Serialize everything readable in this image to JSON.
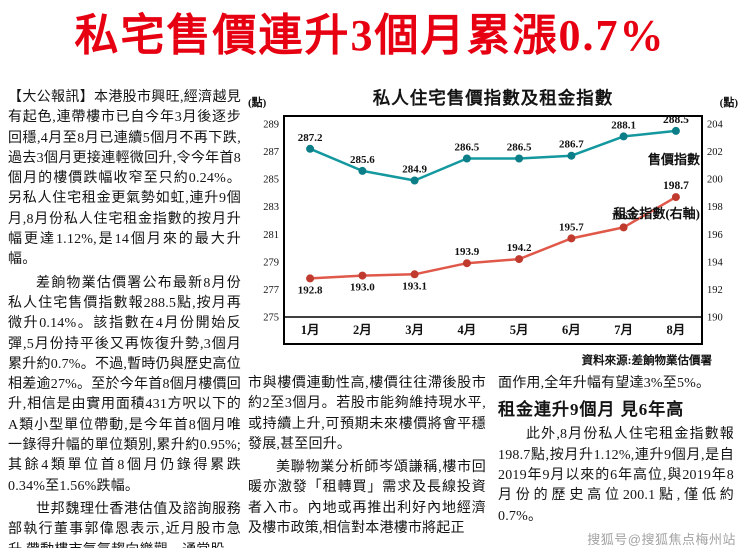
{
  "headline": "私宅售價連升3個月累漲0.7%",
  "colors": {
    "headline": "#e60012",
    "price_line": "#14989f",
    "price_marker": "#0c7e88",
    "rent_line": "#e0584a",
    "rent_marker": "#c03a2e"
  },
  "article": {
    "left_col": [
      "【大公報訊】本港股市興旺,經濟越見有起色,連帶樓市已自今年3月後逐步回穩,4月至8月已連續5個月不再下跌,過去3個月更接連輕微回升,令今年首8個月的樓價跌幅收窄至只約0.24%。另私人住宅租金更氣勢如虹,連升9個月,8月份私人住宅租金指數的按月升幅更達1.12%,是14個月來的最大升幅。",
      "差餉物業估價署公布最新8月份私人住宅售價指數報288.5點,按月再微升0.14%。該指數在4月份開始反彈,5月份持平後又再恢復升勢,3個月累升約0.7%。不過,暫時仍與歷史高位相差逾27%。至於今年首8個月樓價回升,相信是由實用面積431方呎以下的A類小型單位帶動,是今年首8個月唯一錄得升幅的單位類別,累升約0.95%;其餘4類單位首8個月仍錄得累跌0.34%至1.56%跌幅。",
      "世邦魏理仕香港估值及諮詢服務部執行董事郭偉恩表示,近月股市急升,帶動樓市氣氛趨向樂觀。通常股"
    ],
    "mid_col": [
      "市與樓價連動性高,樓價往往滯後股市約2至3個月。若股市能夠維持現水平,或持續上升,可預期未來樓價將會平穩發展,甚至回升。",
      "美聯物業分析師岑頌謙稱,樓市回暖亦激發「租轉買」需求及長線投資者入市。內地或再推出利好內地經濟及樓市政策,相信對本港樓市將起正"
    ],
    "right_col": {
      "lead": "面作用,全年升幅有望達3%至5%。",
      "subhead": "租金連升9個月 見6年高",
      "body": "此外,8月份私人住宅租金指數報198.7點,按月升1.12%,連升9個月,是自2019年9月以來的6年高位,與2019年8月份的歷史高位200.1點,僅低約0.7%。"
    }
  },
  "chart_data": {
    "type": "line",
    "title": "私人住宅售價指數及租金指數",
    "unit_left": "(點)",
    "unit_right": "(點)",
    "categories": [
      "1月",
      "2月",
      "3月",
      "4月",
      "5月",
      "6月",
      "7月",
      "8月"
    ],
    "series": [
      {
        "name": "售價指數",
        "axis": "left",
        "color": "#14989f",
        "marker_color": "#0c7e88",
        "values": [
          287.2,
          285.6,
          284.9,
          286.5,
          286.5,
          286.7,
          288.1,
          288.5
        ]
      },
      {
        "name": "租金指數(右軸)",
        "axis": "right",
        "color": "#e0584a",
        "marker_color": "#c03a2e",
        "values": [
          192.8,
          193.0,
          193.1,
          193.9,
          194.2,
          195.7,
          196.5,
          198.7
        ]
      }
    ],
    "left_axis": {
      "min": 275,
      "max": 289,
      "ticks": [
        289,
        287,
        285,
        283,
        281,
        279,
        277,
        275
      ]
    },
    "right_axis": {
      "min": 190,
      "max": 204,
      "ticks": [
        204,
        202,
        200,
        198,
        196,
        194,
        192,
        190
      ]
    },
    "grid": false,
    "legend_position": "inside-right",
    "source": "資料來源:差餉物業估價署"
  },
  "watermark": "搜狐号@搜狐焦点梅州站"
}
